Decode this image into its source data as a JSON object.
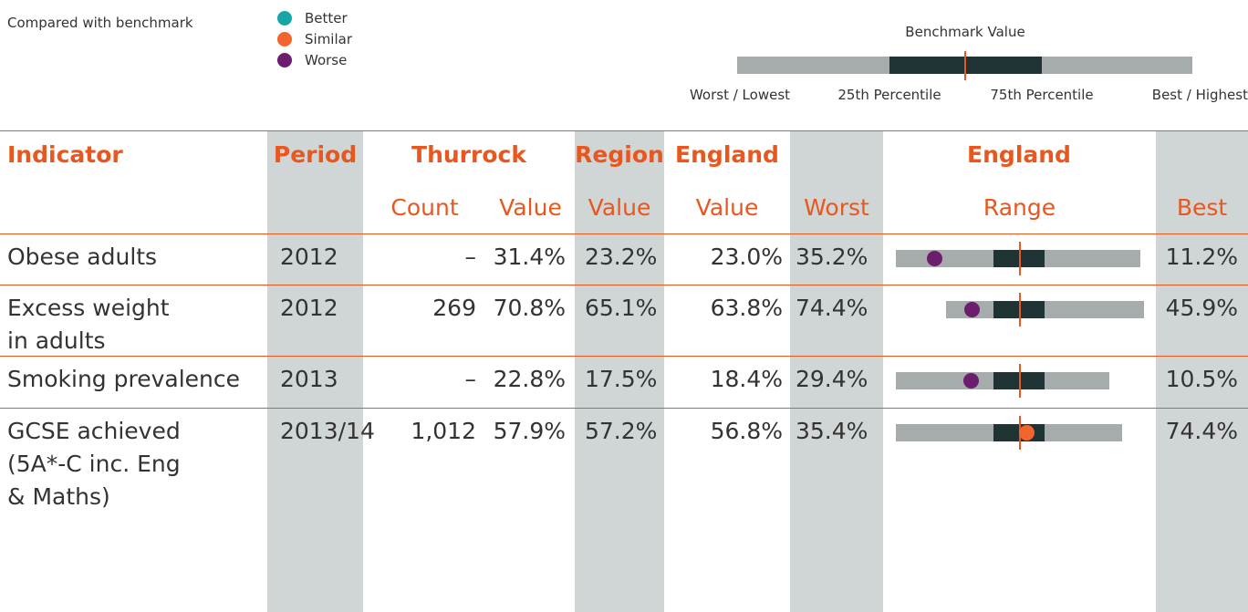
{
  "legend": {
    "title": "Compared with benchmark",
    "items": [
      {
        "label": "Better",
        "color": "#17a6a8"
      },
      {
        "label": "Similar",
        "color": "#f2652c"
      },
      {
        "label": "Worse",
        "color": "#6b1d6e"
      }
    ]
  },
  "key": {
    "title": "Benchmark Value",
    "labels": [
      "Worst / Lowest",
      "25th Percentile",
      "75th Percentile",
      "Best / Highest"
    ]
  },
  "table": {
    "header": [
      "Indicator",
      "Period",
      "Thurrock",
      "Region",
      "England",
      "England"
    ],
    "subheader": [
      "Count",
      "Value",
      "Value",
      "Value",
      "Worst",
      "Range",
      "Best"
    ],
    "rows": [
      {
        "indicator": [
          "Obese adults"
        ],
        "period": "2012",
        "count": "–",
        "value": "31.4%",
        "region": "23.2%",
        "england": "23.0%",
        "worst": "35.2%",
        "best": "11.2%",
        "color": "#6b1d6e"
      },
      {
        "indicator": [
          "Excess weight",
          "in adults"
        ],
        "period": "2012",
        "count": "269",
        "value": "70.8%",
        "region": "65.1%",
        "england": "63.8%",
        "worst": "74.4%",
        "best": "45.9%",
        "color": "#6b1d6e"
      },
      {
        "indicator": [
          "Smoking prevalence"
        ],
        "period": "2013",
        "count": "–",
        "value": "22.8%",
        "region": "17.5%",
        "england": "18.4%",
        "worst": "29.4%",
        "best": "10.5%",
        "color": "#6b1d6e"
      },
      {
        "indicator": [
          "GCSE achieved",
          "(5A*-C inc. Eng",
          "& Maths)"
        ],
        "period": "2013/14",
        "count": "1,012",
        "value": "57.9%",
        "region": "57.2%",
        "england": "56.8%",
        "worst": "35.4%",
        "best": "74.4%",
        "color": "#f2652c"
      }
    ]
  }
}
